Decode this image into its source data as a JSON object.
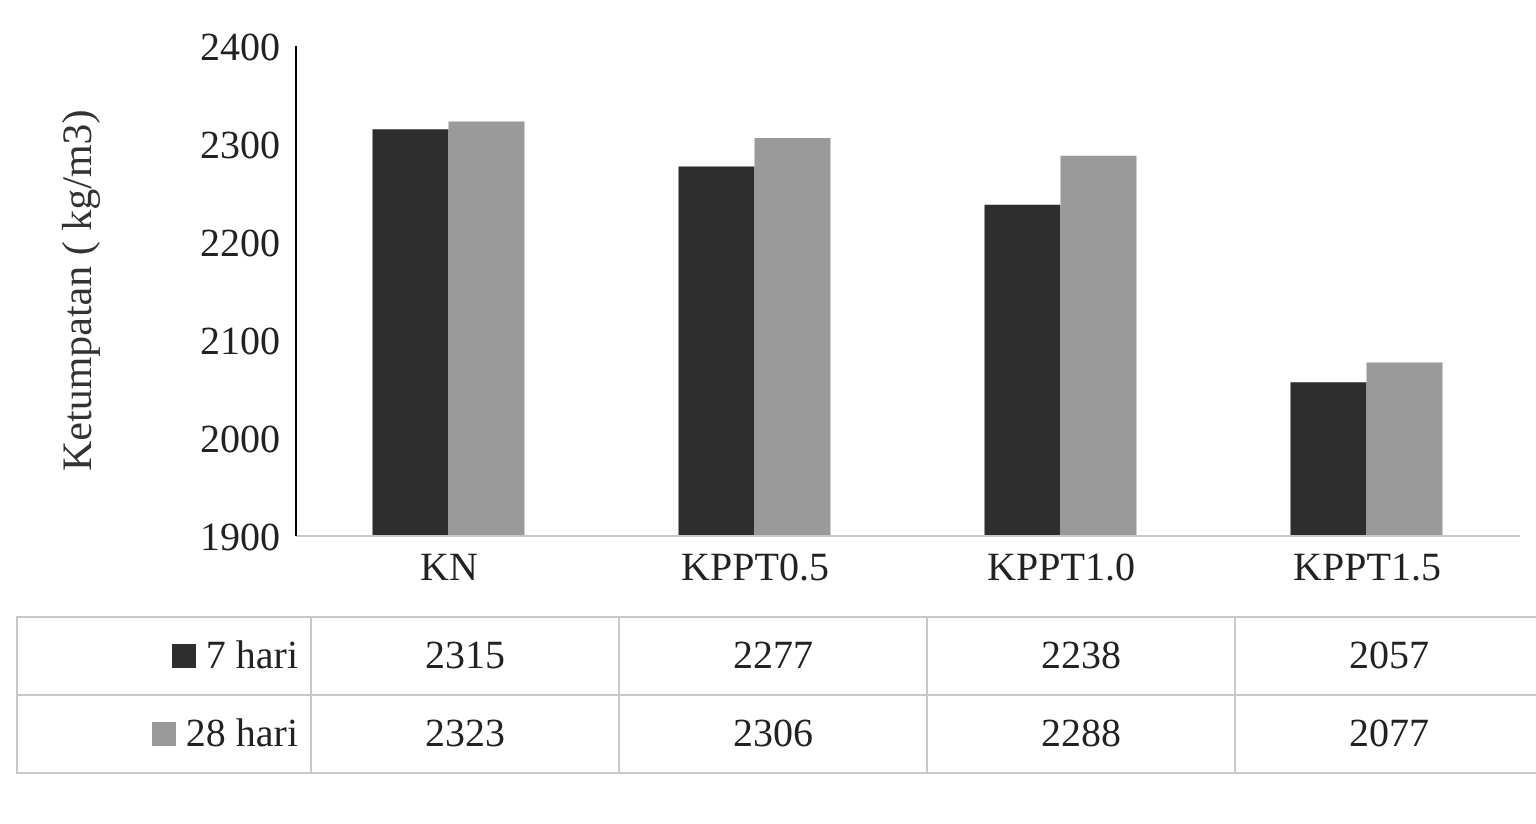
{
  "chart_data": {
    "type": "bar",
    "ylabel": "Ketumpatan ( kg/m3)",
    "categories": [
      "KN",
      "KPPT0.5",
      "KPPT1.0",
      "KPPT1.5"
    ],
    "series": [
      {
        "name": "7 hari",
        "color": "#2e2e2e",
        "values": [
          2315,
          2277,
          2238,
          2057
        ]
      },
      {
        "name": "28 hari",
        "color": "#9a9a9a",
        "values": [
          2323,
          2306,
          2288,
          2077
        ]
      }
    ],
    "ylim": [
      1900,
      2400
    ],
    "yticks": [
      1900,
      2000,
      2100,
      2200,
      2300,
      2400
    ],
    "grid": false,
    "legend": "bottom",
    "data_labels": true
  }
}
